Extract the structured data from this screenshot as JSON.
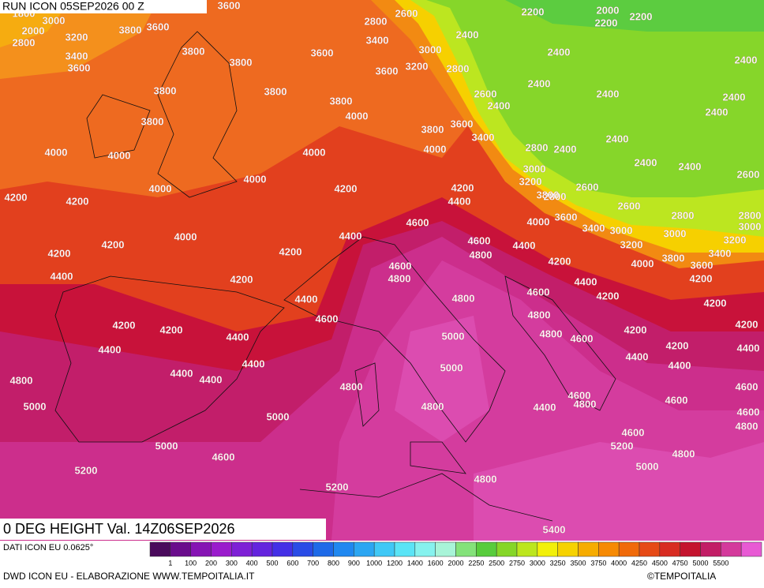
{
  "header": {
    "run": "RUN ICON 05SEP2026 00 Z",
    "field": "0 DEG HEIGHT Val. 14Z06SEP2026"
  },
  "map": {
    "contour_labels": [
      3600,
      1800,
      3000,
      2000,
      3200,
      2800,
      3800,
      3600,
      3400,
      3600,
      3800,
      3800,
      3600,
      2600,
      2800,
      3400,
      3000,
      3600,
      3200,
      2800,
      2200,
      2000,
      2200,
      2200,
      2400,
      2400,
      2400,
      2400,
      2400,
      2400,
      3800,
      3800,
      3800,
      4000,
      2600,
      2400,
      2400,
      3800,
      3800,
      3600,
      3400,
      4000,
      2800,
      2400,
      2400,
      4000,
      4000,
      4000,
      2400,
      2400,
      3000,
      2600,
      4000,
      4000,
      4200,
      4200,
      3200,
      3800,
      2800,
      2600,
      4400,
      2600,
      4200,
      4200,
      4000,
      3600,
      2800,
      2800,
      4600,
      3400,
      3000,
      3000,
      3000,
      4000,
      4400,
      4600,
      4400,
      3200,
      3200,
      4200,
      4200,
      4200,
      4800,
      3800,
      3600,
      3400,
      4600,
      4200,
      4000,
      4200,
      4400,
      4800,
      4200,
      4400,
      4600,
      4800,
      4400,
      4200,
      4200,
      4800,
      4600,
      4200,
      4200,
      4200,
      4200,
      4400,
      5000,
      4800,
      4600,
      4200,
      4400,
      4400,
      4400,
      4400,
      4400,
      5000,
      4400,
      4400,
      4800,
      4800,
      4600,
      4600,
      4600,
      5000,
      4800,
      4400,
      4800,
      4600,
      5000,
      4800,
      4600,
      5000,
      5200,
      4800,
      4600,
      5200,
      5000,
      4800,
      5200,
      5400
    ]
  },
  "legend": {
    "ticks": [
      "1",
      "100",
      "200",
      "300",
      "400",
      "500",
      "600",
      "700",
      "800",
      "900",
      "1000",
      "1200",
      "1400",
      "1600",
      "2000",
      "2250",
      "2500",
      "2750",
      "3000",
      "3250",
      "3500",
      "3750",
      "4000",
      "4250",
      "4500",
      "4750",
      "5000",
      "5500"
    ],
    "colors": [
      "#4a0a5c",
      "#6a0c8c",
      "#8614b4",
      "#9a1ccc",
      "#7e20d6",
      "#6424de",
      "#4430e6",
      "#2a4ce6",
      "#1e6ae8",
      "#2088f0",
      "#2ca6f2",
      "#40c8f6",
      "#5ae4f6",
      "#86f2ee",
      "#a8f4d8",
      "#84e27a",
      "#58cc3c",
      "#86d628",
      "#bce61e",
      "#f2f00a",
      "#f6d200",
      "#f6ac00",
      "#f68a04",
      "#f06a0a",
      "#e64a16",
      "#d82c22",
      "#c4142e",
      "#c21e66",
      "#d43a9c",
      "#e85ad4"
    ],
    "source": "DATI ICON EU 0.0625°"
  },
  "footer": {
    "credit": "DWD ICON EU - ELABORAZIONE WWW.TEMPOITALIA.IT",
    "copyright": "©TEMPOITALIA"
  }
}
